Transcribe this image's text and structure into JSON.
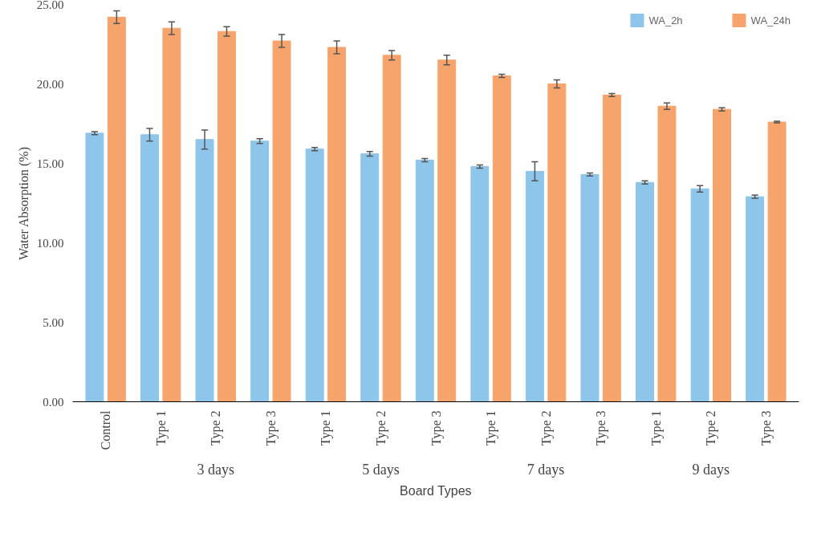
{
  "chart_data": {
    "type": "bar",
    "xlabel": "Board Types",
    "ylabel": "Water Absorption (%)",
    "categories": [
      "Control",
      "Type 1",
      "Type 2",
      "Type 3",
      "Type 1",
      "Type 2",
      "Type 3",
      "Type 1",
      "Type 2",
      "Type 3",
      "Type 1",
      "Type 2",
      "Type 3"
    ],
    "series": [
      {
        "name": "WA_2h",
        "color": "#8ec5ea",
        "values": [
          16.9,
          16.8,
          16.5,
          16.4,
          15.9,
          15.6,
          15.2,
          14.8,
          14.5,
          14.3,
          13.8,
          13.4,
          12.9
        ],
        "errors": [
          0.1,
          0.4,
          0.6,
          0.15,
          0.1,
          0.15,
          0.1,
          0.1,
          0.6,
          0.1,
          0.1,
          0.2,
          0.1
        ]
      },
      {
        "name": "WA_24h",
        "color": "#f6a46c",
        "values": [
          24.2,
          23.5,
          23.3,
          22.7,
          22.3,
          21.8,
          21.5,
          20.5,
          20.0,
          19.3,
          18.6,
          18.4,
          17.6
        ],
        "errors": [
          0.4,
          0.4,
          0.3,
          0.4,
          0.4,
          0.3,
          0.3,
          0.1,
          0.25,
          0.1,
          0.2,
          0.1,
          0.05
        ]
      }
    ],
    "ylim": [
      0,
      25
    ],
    "yticks": [
      {
        "value": 0,
        "label": "0.00"
      },
      {
        "value": 5,
        "label": "5.00"
      },
      {
        "value": 10,
        "label": "10.00"
      },
      {
        "value": 15,
        "label": "15.00"
      },
      {
        "value": 20,
        "label": "20.00"
      },
      {
        "value": 25,
        "label": "25.00"
      }
    ],
    "annotations": [
      "3 days",
      "5 days",
      "7 days",
      "9 days"
    ],
    "grid": false,
    "legend": "top right"
  }
}
